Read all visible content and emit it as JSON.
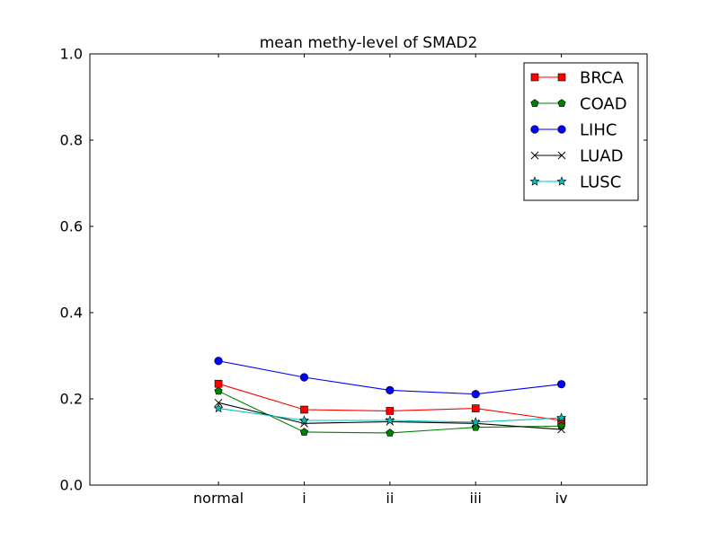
{
  "chart_data": {
    "type": "line",
    "title": "mean methy-level of SMAD2",
    "xlabel": "",
    "ylabel": "",
    "categories": [
      "normal",
      "i",
      "ii",
      "iii",
      "iv"
    ],
    "ylim": [
      0.0,
      1.0
    ],
    "yticks": [
      "0.0",
      "0.2",
      "0.4",
      "0.6",
      "0.8",
      "1.0"
    ],
    "grid": false,
    "legend_position": "top-right",
    "series": [
      {
        "name": "BRCA",
        "color": "#ff0000",
        "marker": "square",
        "values": [
          0.235,
          0.175,
          0.172,
          0.178,
          0.15
        ]
      },
      {
        "name": "COAD",
        "color": "#008000",
        "marker": "pentagon",
        "values": [
          0.218,
          0.123,
          0.121,
          0.134,
          0.137
        ]
      },
      {
        "name": "LIHC",
        "color": "#0000ff",
        "marker": "circle",
        "values": [
          0.288,
          0.25,
          0.22,
          0.211,
          0.234
        ]
      },
      {
        "name": "LUAD",
        "color": "#000000",
        "marker": "x",
        "values": [
          0.191,
          0.143,
          0.147,
          0.143,
          0.129
        ]
      },
      {
        "name": "LUSC",
        "color": "#00bfbf",
        "marker": "star",
        "values": [
          0.178,
          0.15,
          0.15,
          0.146,
          0.156
        ]
      }
    ]
  }
}
